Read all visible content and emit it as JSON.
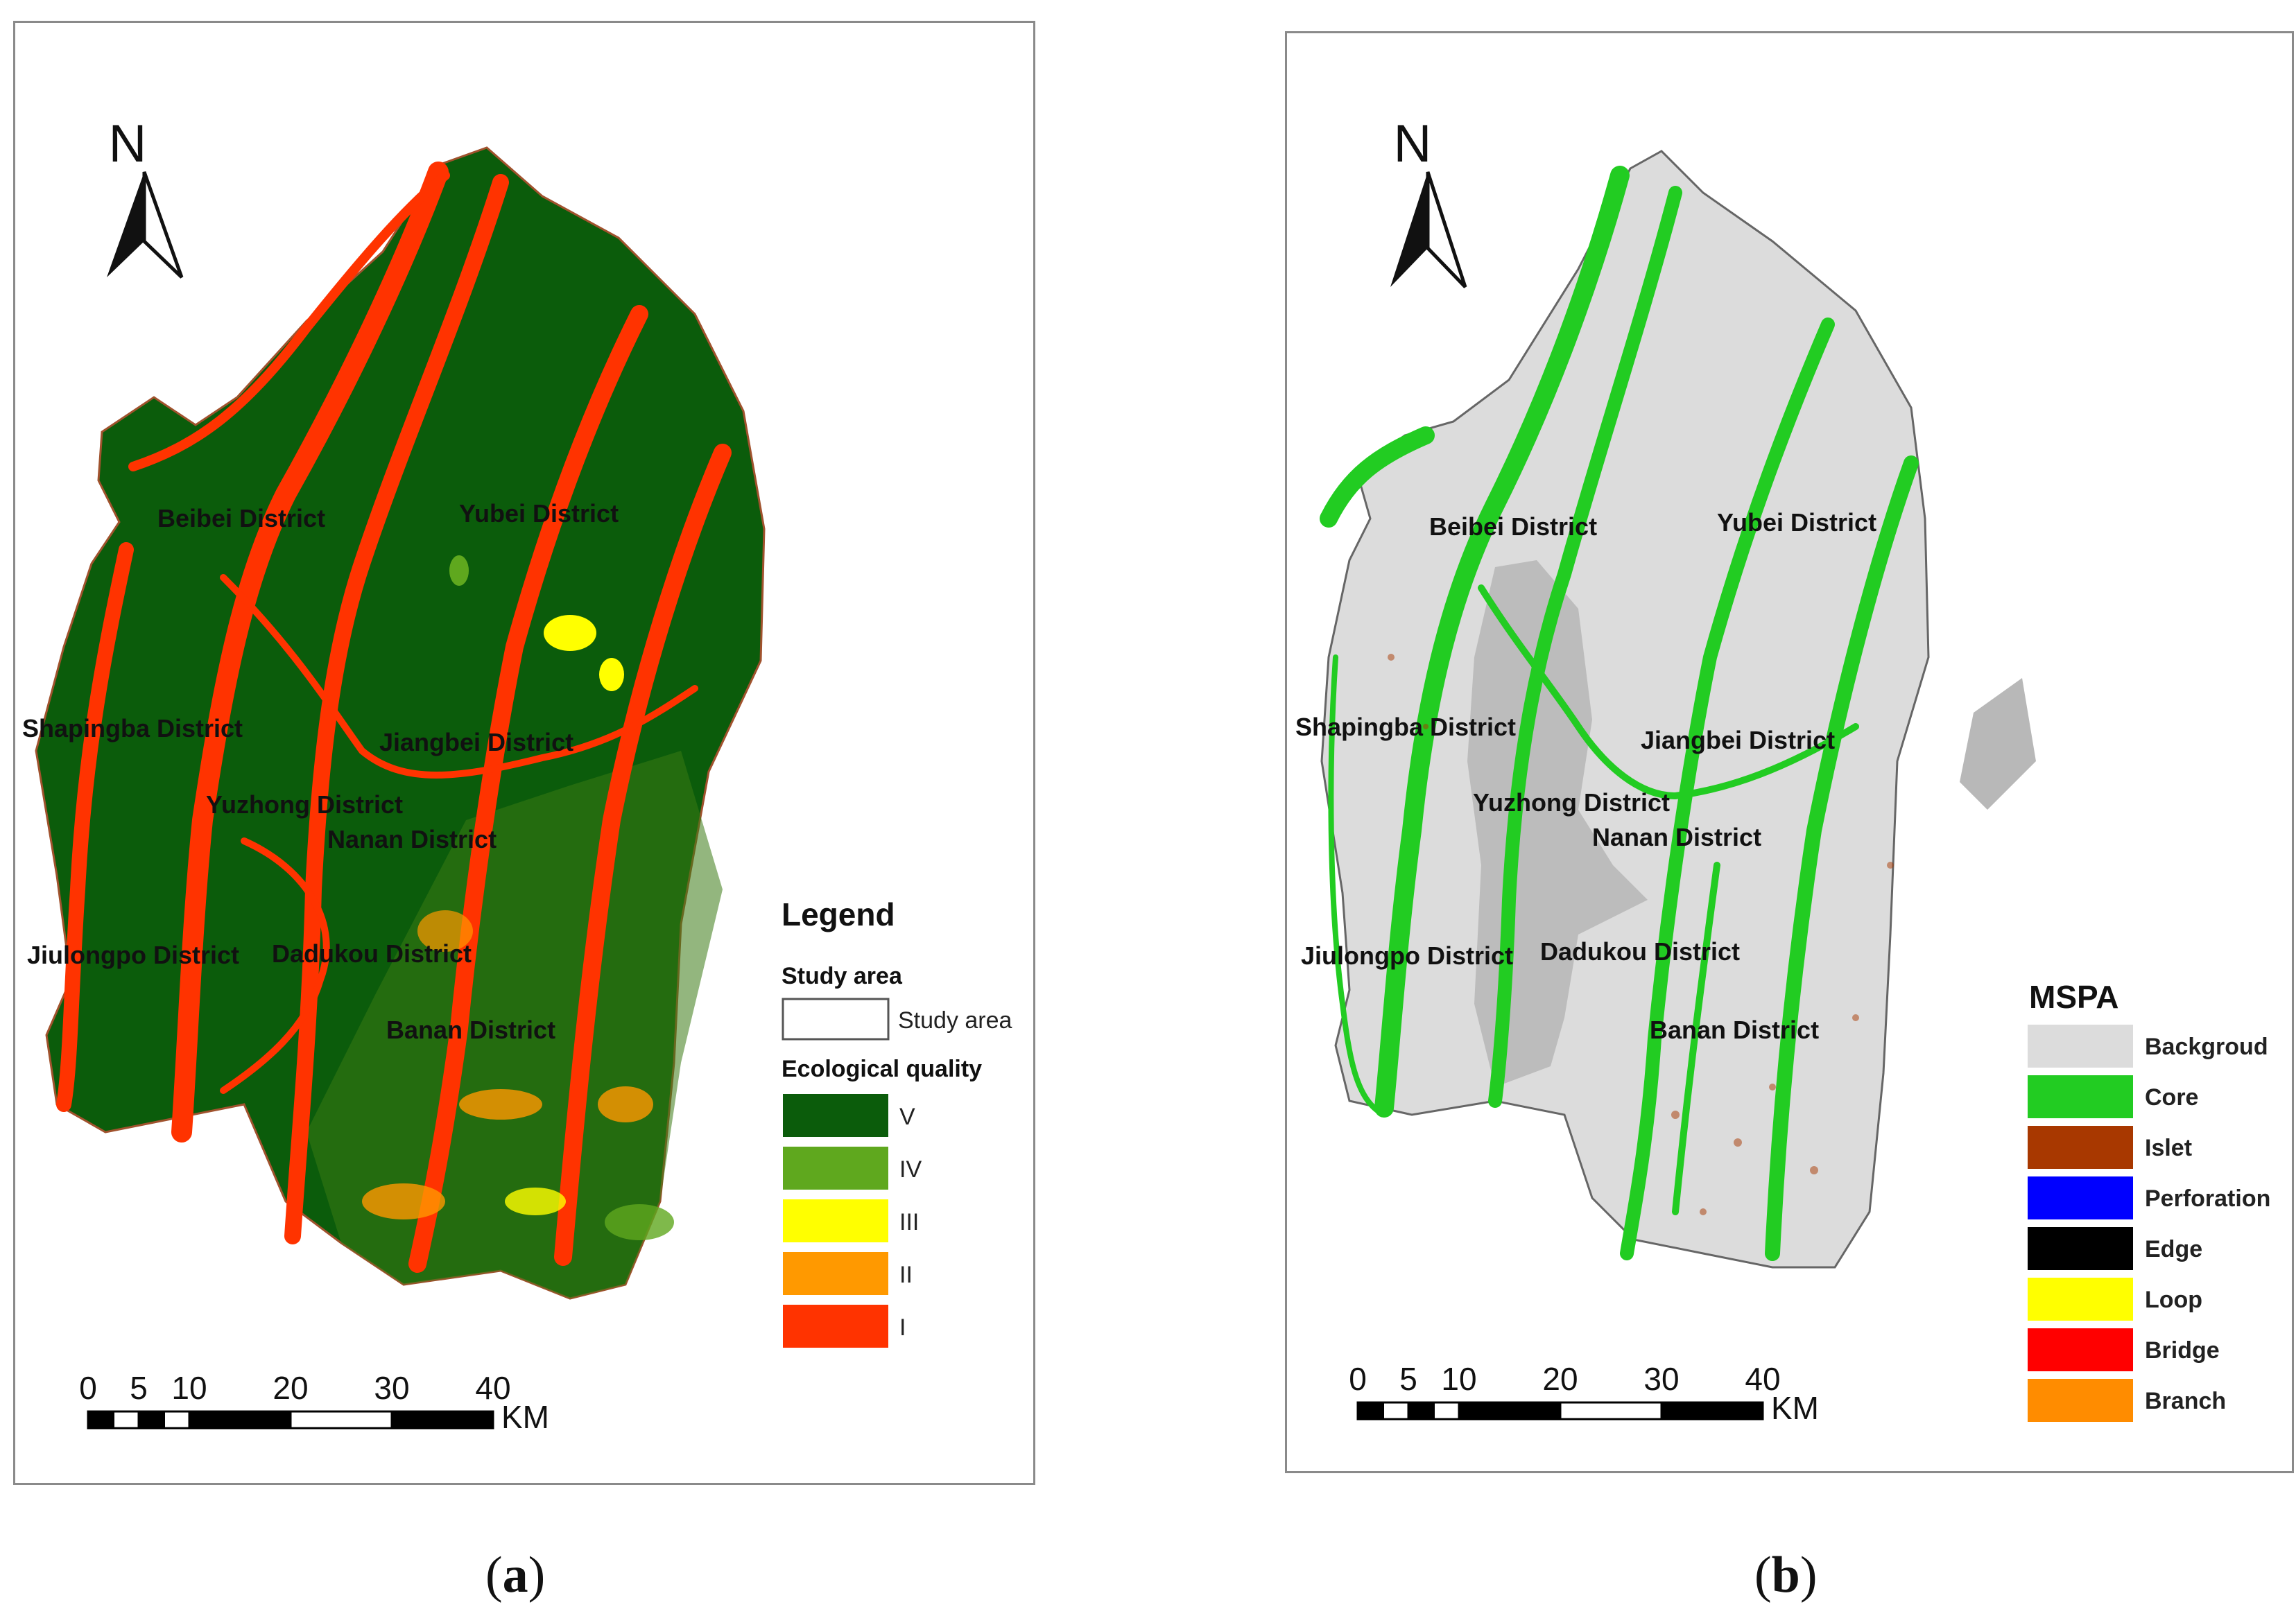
{
  "panel_a": {
    "north": "N",
    "districts": [
      "Beibei District",
      "Yubei District",
      "Shapingba District",
      "Jiangbei District",
      "Yuzhong District",
      "Nanan District",
      "Jiulongpo District",
      "Dadukou District",
      "Banan District"
    ],
    "legend": {
      "title": "Legend",
      "study_area_heading": "Study area",
      "study_area_label": "Study area",
      "quality_heading": "Ecological quality",
      "classes": [
        {
          "label": "V",
          "color": "#0b5c0b"
        },
        {
          "label": "IV",
          "color": "#5fa81e"
        },
        {
          "label": "III",
          "color": "#ffff00"
        },
        {
          "label": "II",
          "color": "#ff9900"
        },
        {
          "label": "I",
          "color": "#ff3300"
        }
      ]
    },
    "scale": {
      "ticks": [
        "0",
        "5",
        "10",
        "20",
        "30",
        "40"
      ],
      "unit": "KM"
    },
    "caption": "a"
  },
  "panel_b": {
    "north": "N",
    "districts": [
      "Beibei District",
      "Yubei District",
      "Shapingba District",
      "Jiangbei District",
      "Yuzhong District",
      "Nanan District",
      "Jiulongpo District",
      "Dadukou District",
      "Banan District"
    ],
    "legend": {
      "title": "MSPA",
      "classes": [
        {
          "label": "Backgroud",
          "color": "#dcdcdc"
        },
        {
          "label": "Core",
          "color": "#22cc22"
        },
        {
          "label": "Islet",
          "color": "#a83800"
        },
        {
          "label": "Perforation",
          "color": "#0000ff"
        },
        {
          "label": "Edge",
          "color": "#000000"
        },
        {
          "label": "Loop",
          "color": "#ffff00"
        },
        {
          "label": "Bridge",
          "color": "#ff0000"
        },
        {
          "label": "Branch",
          "color": "#ff8c00"
        }
      ]
    },
    "scale": {
      "ticks": [
        "0",
        "5",
        "10",
        "20",
        "30",
        "40"
      ],
      "unit": "KM"
    },
    "caption": "b"
  }
}
